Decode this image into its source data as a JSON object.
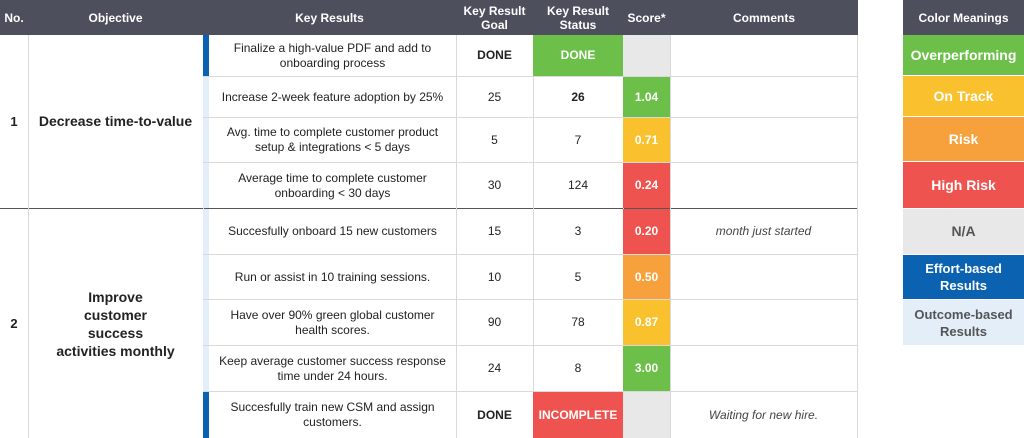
{
  "headers": {
    "no": "No.",
    "objective": "Objective",
    "key_results": "Key Results",
    "goal": "Key Result Goal",
    "status": "Key Result Status",
    "score": "Score*",
    "comments": "Comments"
  },
  "objectives": [
    {
      "no": "1",
      "label": "Decrease time-to-value"
    },
    {
      "no": "2",
      "label": "Improve customer success activities monthly"
    }
  ],
  "rows": [
    {
      "kr": "Finalize a high-value PDF and add to onboarding process",
      "goal": "DONE",
      "status": "DONE",
      "score": "",
      "comment": ""
    },
    {
      "kr": "Increase 2-week feature adoption by 25%",
      "goal": "25",
      "status": "26",
      "score": "1.04",
      "comment": ""
    },
    {
      "kr": "Avg. time to complete customer product setup & integrations < 5 days",
      "goal": "5",
      "status": "7",
      "score": "0.71",
      "comment": ""
    },
    {
      "kr": "Average time to complete customer onboarding < 30 days",
      "goal": "30",
      "status": "124",
      "score": "0.24",
      "comment": ""
    },
    {
      "kr": "Succesfully onboard 15 new customers",
      "goal": "15",
      "status": "3",
      "score": "0.20",
      "comment": "month just started"
    },
    {
      "kr": "Run or assist in 10 training sessions.",
      "goal": "10",
      "status": "5",
      "score": "0.50",
      "comment": ""
    },
    {
      "kr": "Have over 90% green global customer health scores.",
      "goal": "90",
      "status": "78",
      "score": "0.87",
      "comment": ""
    },
    {
      "kr": "Keep average customer success response time under 24 hours.",
      "goal": "24",
      "status": "8",
      "score": "3.00",
      "comment": ""
    },
    {
      "kr": "Succesfully train new CSM and assign customers.",
      "goal": "DONE",
      "status": "INCOMPLETE",
      "score": "",
      "comment": "Waiting for new hire."
    }
  ],
  "legend": {
    "title": "Color Meanings",
    "items": [
      {
        "label": "Overperforming",
        "color": "#6cc04a"
      },
      {
        "label": "On Track",
        "color": "#f9c12e"
      },
      {
        "label": "Risk",
        "color": "#f6a13c"
      },
      {
        "label": "High Risk",
        "color": "#ef5350"
      },
      {
        "label": "N/A",
        "color": "#e8e8e8"
      },
      {
        "label": "Effort-based Results",
        "color": "#0a62b0"
      },
      {
        "label": "Outcome-based Results",
        "color": "#e3eef9"
      }
    ]
  },
  "colors": {
    "header": "#4d4f5c",
    "overperforming": "#6cc04a",
    "on_track": "#f9c12e",
    "risk": "#f6a13c",
    "high_risk": "#ef5350",
    "na": "#e8e8e8",
    "effort": "#0a62b0",
    "outcome": "#e3eef9"
  }
}
